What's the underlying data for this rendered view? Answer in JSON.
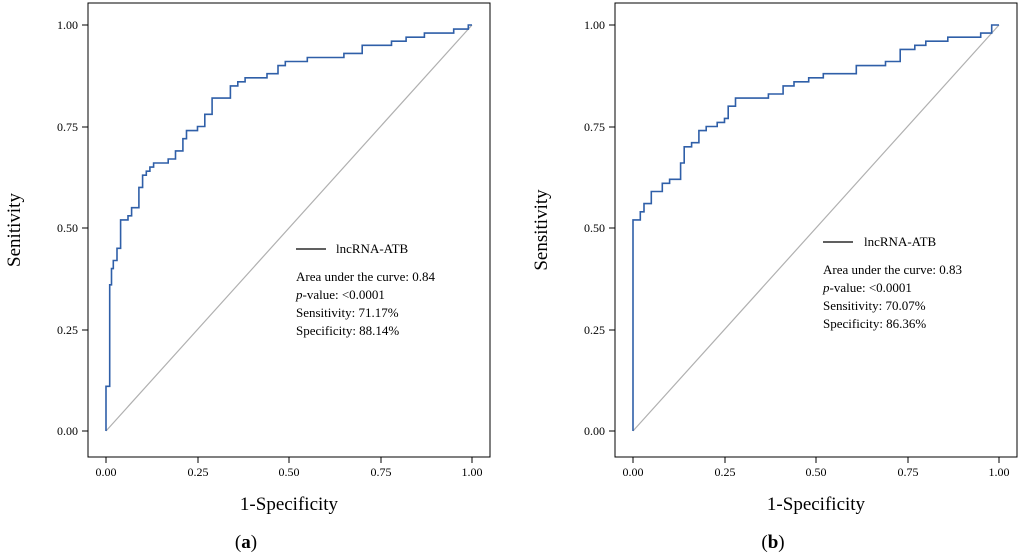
{
  "chart_data": [
    {
      "type": "line",
      "panel_label": {
        "open": "(",
        "letter": "a",
        "close": ")"
      },
      "xlabel": "1-Specificity",
      "ylabel": "Senitivity",
      "xlim": [
        0,
        1
      ],
      "ylim": [
        0,
        1
      ],
      "ticks": [
        "0.00",
        "0.25",
        "0.50",
        "0.75",
        "1.00"
      ],
      "tick_values": [
        0,
        0.25,
        0.5,
        0.75,
        1
      ],
      "grid": false,
      "legend": {
        "position": "center-right",
        "series_label": "lncRNA-ATB",
        "auc": "Area under the curve: 0.84",
        "p_italic": "p",
        "p_rest": "-value: <0.0001",
        "sensitivity": "Sensitivity: 71.17%",
        "specificity": "Specificity: 88.14%"
      },
      "series": [
        {
          "name": "lncRNA-ATB",
          "color": "#2f5fa8",
          "points": [
            [
              0,
              0
            ],
            [
              0,
              0.11
            ],
            [
              0.01,
              0.11
            ],
            [
              0.01,
              0.36
            ],
            [
              0.015,
              0.36
            ],
            [
              0.015,
              0.4
            ],
            [
              0.02,
              0.4
            ],
            [
              0.02,
              0.42
            ],
            [
              0.03,
              0.42
            ],
            [
              0.03,
              0.45
            ],
            [
              0.04,
              0.45
            ],
            [
              0.04,
              0.52
            ],
            [
              0.06,
              0.52
            ],
            [
              0.06,
              0.53
            ],
            [
              0.07,
              0.53
            ],
            [
              0.07,
              0.55
            ],
            [
              0.09,
              0.55
            ],
            [
              0.09,
              0.6
            ],
            [
              0.1,
              0.6
            ],
            [
              0.1,
              0.63
            ],
            [
              0.11,
              0.63
            ],
            [
              0.11,
              0.64
            ],
            [
              0.12,
              0.64
            ],
            [
              0.12,
              0.65
            ],
            [
              0.13,
              0.65
            ],
            [
              0.13,
              0.66
            ],
            [
              0.17,
              0.66
            ],
            [
              0.17,
              0.67
            ],
            [
              0.19,
              0.67
            ],
            [
              0.19,
              0.69
            ],
            [
              0.21,
              0.69
            ],
            [
              0.21,
              0.72
            ],
            [
              0.22,
              0.72
            ],
            [
              0.22,
              0.74
            ],
            [
              0.25,
              0.74
            ],
            [
              0.25,
              0.75
            ],
            [
              0.27,
              0.75
            ],
            [
              0.27,
              0.78
            ],
            [
              0.29,
              0.78
            ],
            [
              0.29,
              0.82
            ],
            [
              0.34,
              0.82
            ],
            [
              0.34,
              0.85
            ],
            [
              0.36,
              0.85
            ],
            [
              0.36,
              0.86
            ],
            [
              0.38,
              0.86
            ],
            [
              0.38,
              0.87
            ],
            [
              0.44,
              0.87
            ],
            [
              0.44,
              0.88
            ],
            [
              0.47,
              0.88
            ],
            [
              0.47,
              0.9
            ],
            [
              0.49,
              0.9
            ],
            [
              0.49,
              0.91
            ],
            [
              0.55,
              0.91
            ],
            [
              0.55,
              0.92
            ],
            [
              0.65,
              0.92
            ],
            [
              0.65,
              0.93
            ],
            [
              0.7,
              0.93
            ],
            [
              0.7,
              0.95
            ],
            [
              0.78,
              0.95
            ],
            [
              0.78,
              0.96
            ],
            [
              0.82,
              0.96
            ],
            [
              0.82,
              0.97
            ],
            [
              0.87,
              0.97
            ],
            [
              0.87,
              0.98
            ],
            [
              0.95,
              0.98
            ],
            [
              0.95,
              0.99
            ],
            [
              0.99,
              0.99
            ],
            [
              0.99,
              1.0
            ],
            [
              1.0,
              1.0
            ]
          ]
        },
        {
          "name": "reference",
          "color": "#b0b0b0",
          "points": [
            [
              0,
              0
            ],
            [
              1,
              1
            ]
          ]
        }
      ]
    },
    {
      "type": "line",
      "panel_label": {
        "open": "(",
        "letter": "b",
        "close": ")"
      },
      "xlabel": "1-Specificity",
      "ylabel": "Sensitivity",
      "xlim": [
        0,
        1
      ],
      "ylim": [
        0,
        1
      ],
      "ticks": [
        "0.00",
        "0.25",
        "0.50",
        "0.75",
        "1.00"
      ],
      "tick_values": [
        0,
        0.25,
        0.5,
        0.75,
        1
      ],
      "grid": false,
      "legend": {
        "position": "center-right",
        "series_label": "lncRNA-ATB",
        "auc": "Area under the curve: 0.83",
        "p_italic": "p",
        "p_rest": "-value: <0.0001",
        "sensitivity": "Sensitivity: 70.07%",
        "specificity": "Specificity: 86.36%"
      },
      "series": [
        {
          "name": "lncRNA-ATB",
          "color": "#2f5fa8",
          "points": [
            [
              0,
              0
            ],
            [
              0,
              0.52
            ],
            [
              0.02,
              0.52
            ],
            [
              0.02,
              0.54
            ],
            [
              0.03,
              0.54
            ],
            [
              0.03,
              0.56
            ],
            [
              0.05,
              0.56
            ],
            [
              0.05,
              0.59
            ],
            [
              0.08,
              0.59
            ],
            [
              0.08,
              0.61
            ],
            [
              0.1,
              0.61
            ],
            [
              0.1,
              0.62
            ],
            [
              0.13,
              0.62
            ],
            [
              0.13,
              0.66
            ],
            [
              0.14,
              0.66
            ],
            [
              0.14,
              0.7
            ],
            [
              0.16,
              0.7
            ],
            [
              0.16,
              0.71
            ],
            [
              0.18,
              0.71
            ],
            [
              0.18,
              0.74
            ],
            [
              0.2,
              0.74
            ],
            [
              0.2,
              0.75
            ],
            [
              0.23,
              0.75
            ],
            [
              0.23,
              0.76
            ],
            [
              0.25,
              0.76
            ],
            [
              0.25,
              0.77
            ],
            [
              0.26,
              0.77
            ],
            [
              0.26,
              0.8
            ],
            [
              0.28,
              0.8
            ],
            [
              0.28,
              0.82
            ],
            [
              0.37,
              0.82
            ],
            [
              0.37,
              0.83
            ],
            [
              0.41,
              0.83
            ],
            [
              0.41,
              0.85
            ],
            [
              0.44,
              0.85
            ],
            [
              0.44,
              0.86
            ],
            [
              0.48,
              0.86
            ],
            [
              0.48,
              0.87
            ],
            [
              0.52,
              0.87
            ],
            [
              0.52,
              0.88
            ],
            [
              0.61,
              0.88
            ],
            [
              0.61,
              0.9
            ],
            [
              0.69,
              0.9
            ],
            [
              0.69,
              0.91
            ],
            [
              0.73,
              0.91
            ],
            [
              0.73,
              0.94
            ],
            [
              0.77,
              0.94
            ],
            [
              0.77,
              0.95
            ],
            [
              0.8,
              0.95
            ],
            [
              0.8,
              0.96
            ],
            [
              0.86,
              0.96
            ],
            [
              0.86,
              0.97
            ],
            [
              0.95,
              0.97
            ],
            [
              0.95,
              0.98
            ],
            [
              0.98,
              0.98
            ],
            [
              0.98,
              1.0
            ],
            [
              1.0,
              1.0
            ]
          ]
        },
        {
          "name": "reference",
          "color": "#b0b0b0",
          "points": [
            [
              0,
              0
            ],
            [
              1,
              1
            ]
          ]
        }
      ]
    }
  ]
}
